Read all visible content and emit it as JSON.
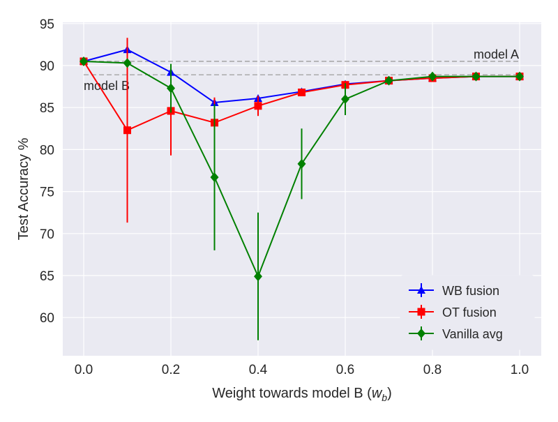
{
  "chart_data": {
    "type": "line",
    "title": "",
    "xlabel": "Weight towards model B (",
    "xlabel_math": "w",
    "xlabel_sub": "b",
    "xlabel_end": ")",
    "ylabel": "Test Accuracy %",
    "xlim": [
      -0.05,
      1.05
    ],
    "ylim": [
      55.5,
      95.2
    ],
    "xticks": [
      "0.0",
      "0.2",
      "0.4",
      "0.6",
      "0.8",
      "1.0"
    ],
    "yticks": [
      "60",
      "65",
      "70",
      "75",
      "80",
      "85",
      "90",
      "95"
    ],
    "grid": true,
    "legend_position": "lower-right",
    "x": [
      0.0,
      0.1,
      0.2,
      0.3,
      0.4,
      0.5,
      0.6,
      0.7,
      0.8,
      0.9,
      1.0
    ],
    "series": [
      {
        "name": "WB fusion",
        "color": "#0000ff",
        "marker": "triangle",
        "values": [
          90.5,
          91.9,
          89.2,
          85.6,
          86.1,
          86.9,
          87.8,
          88.2,
          88.5,
          88.7,
          88.7
        ],
        "errors": [
          0,
          0.3,
          0.3,
          0.3,
          0.2,
          0.2,
          0.1,
          0.1,
          0.1,
          0.1,
          0
        ]
      },
      {
        "name": "OT fusion",
        "color": "#ff0000",
        "marker": "square",
        "values": [
          90.5,
          82.3,
          84.6,
          83.2,
          85.2,
          86.8,
          87.7,
          88.2,
          88.5,
          88.7,
          88.7
        ],
        "errors": [
          0,
          11.0,
          5.3,
          3.0,
          1.2,
          0.3,
          0.2,
          0.1,
          0.1,
          0.1,
          0
        ]
      },
      {
        "name": "Vanilla avg",
        "color": "#008000",
        "marker": "diamond",
        "values": [
          90.5,
          90.3,
          87.3,
          76.7,
          64.9,
          78.3,
          86.0,
          88.2,
          88.7,
          88.7,
          88.7
        ],
        "errors": [
          0,
          0.3,
          2.9,
          8.7,
          7.6,
          4.2,
          1.9,
          0.2,
          0.1,
          0.1,
          0
        ]
      }
    ],
    "reference_lines": [
      {
        "label": "model A",
        "value": 90.5
      },
      {
        "label": "model B",
        "value": 88.9
      }
    ]
  }
}
